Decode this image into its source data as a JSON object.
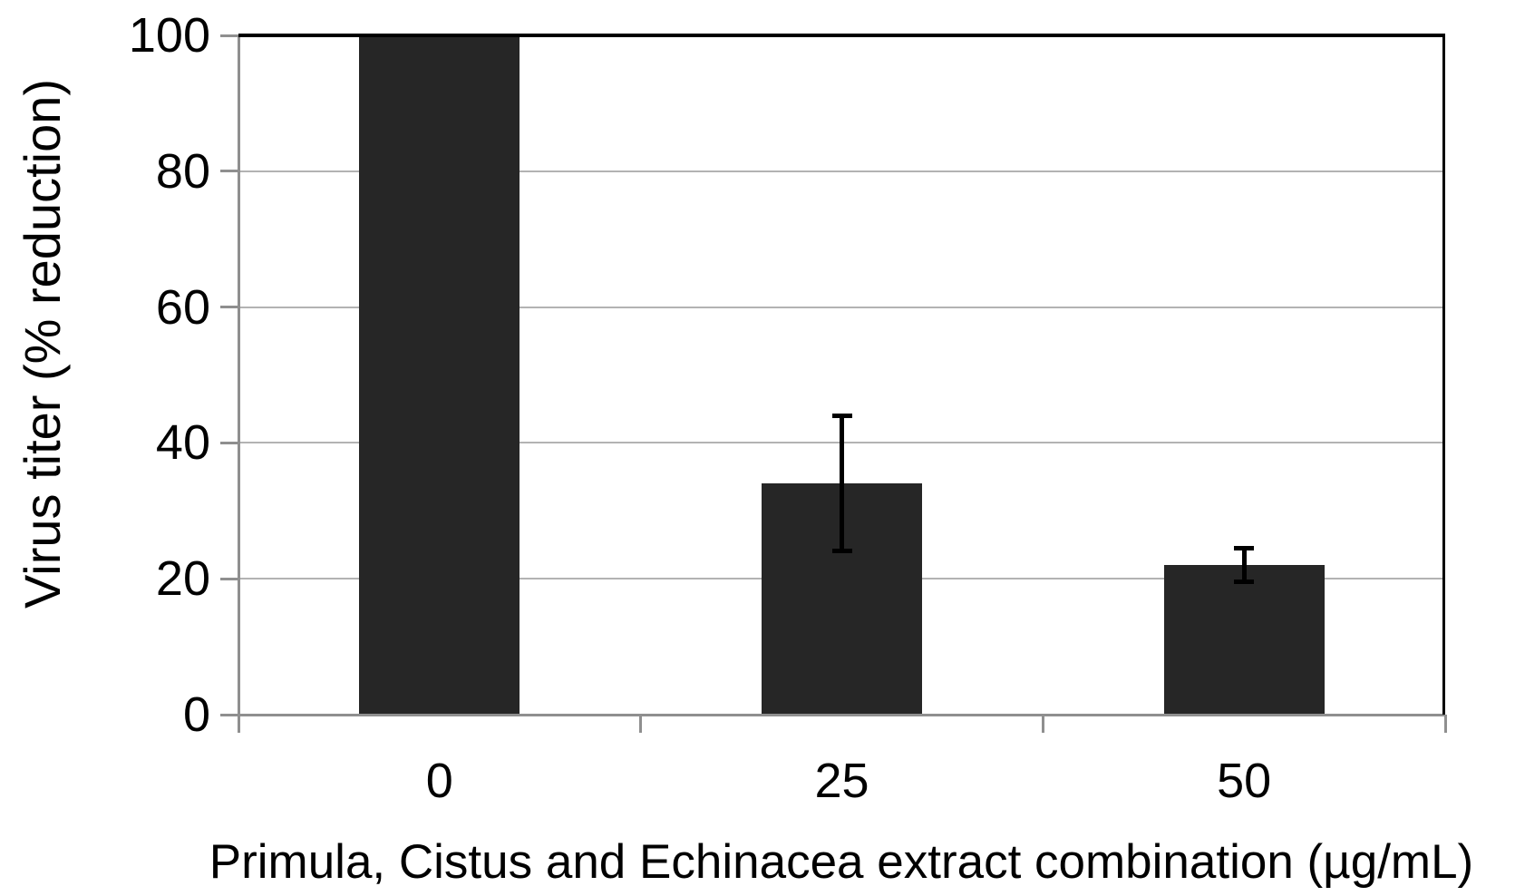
{
  "chart_data": {
    "type": "bar",
    "title": "",
    "categories": [
      "0",
      "25",
      "50"
    ],
    "values": [
      100,
      34,
      22
    ],
    "errors": [
      0,
      10,
      2.5
    ],
    "xlabel": "Primula, Cistus and Echinacea extract combination (µg/mL)",
    "ylabel": "Virus titer (% reduction)",
    "ylim": [
      0,
      100
    ],
    "yticks": [
      0,
      20,
      40,
      60,
      80,
      100
    ],
    "grid": "horizontal-light-gray",
    "legend": "none",
    "colors": {
      "bar_fill": "#262626",
      "gridline": "#b3b3b3",
      "axis_line": "#8f8f8f",
      "plot_border": "#000000",
      "error_bar": "#000000",
      "text": "#000000",
      "background": "#ffffff"
    }
  }
}
